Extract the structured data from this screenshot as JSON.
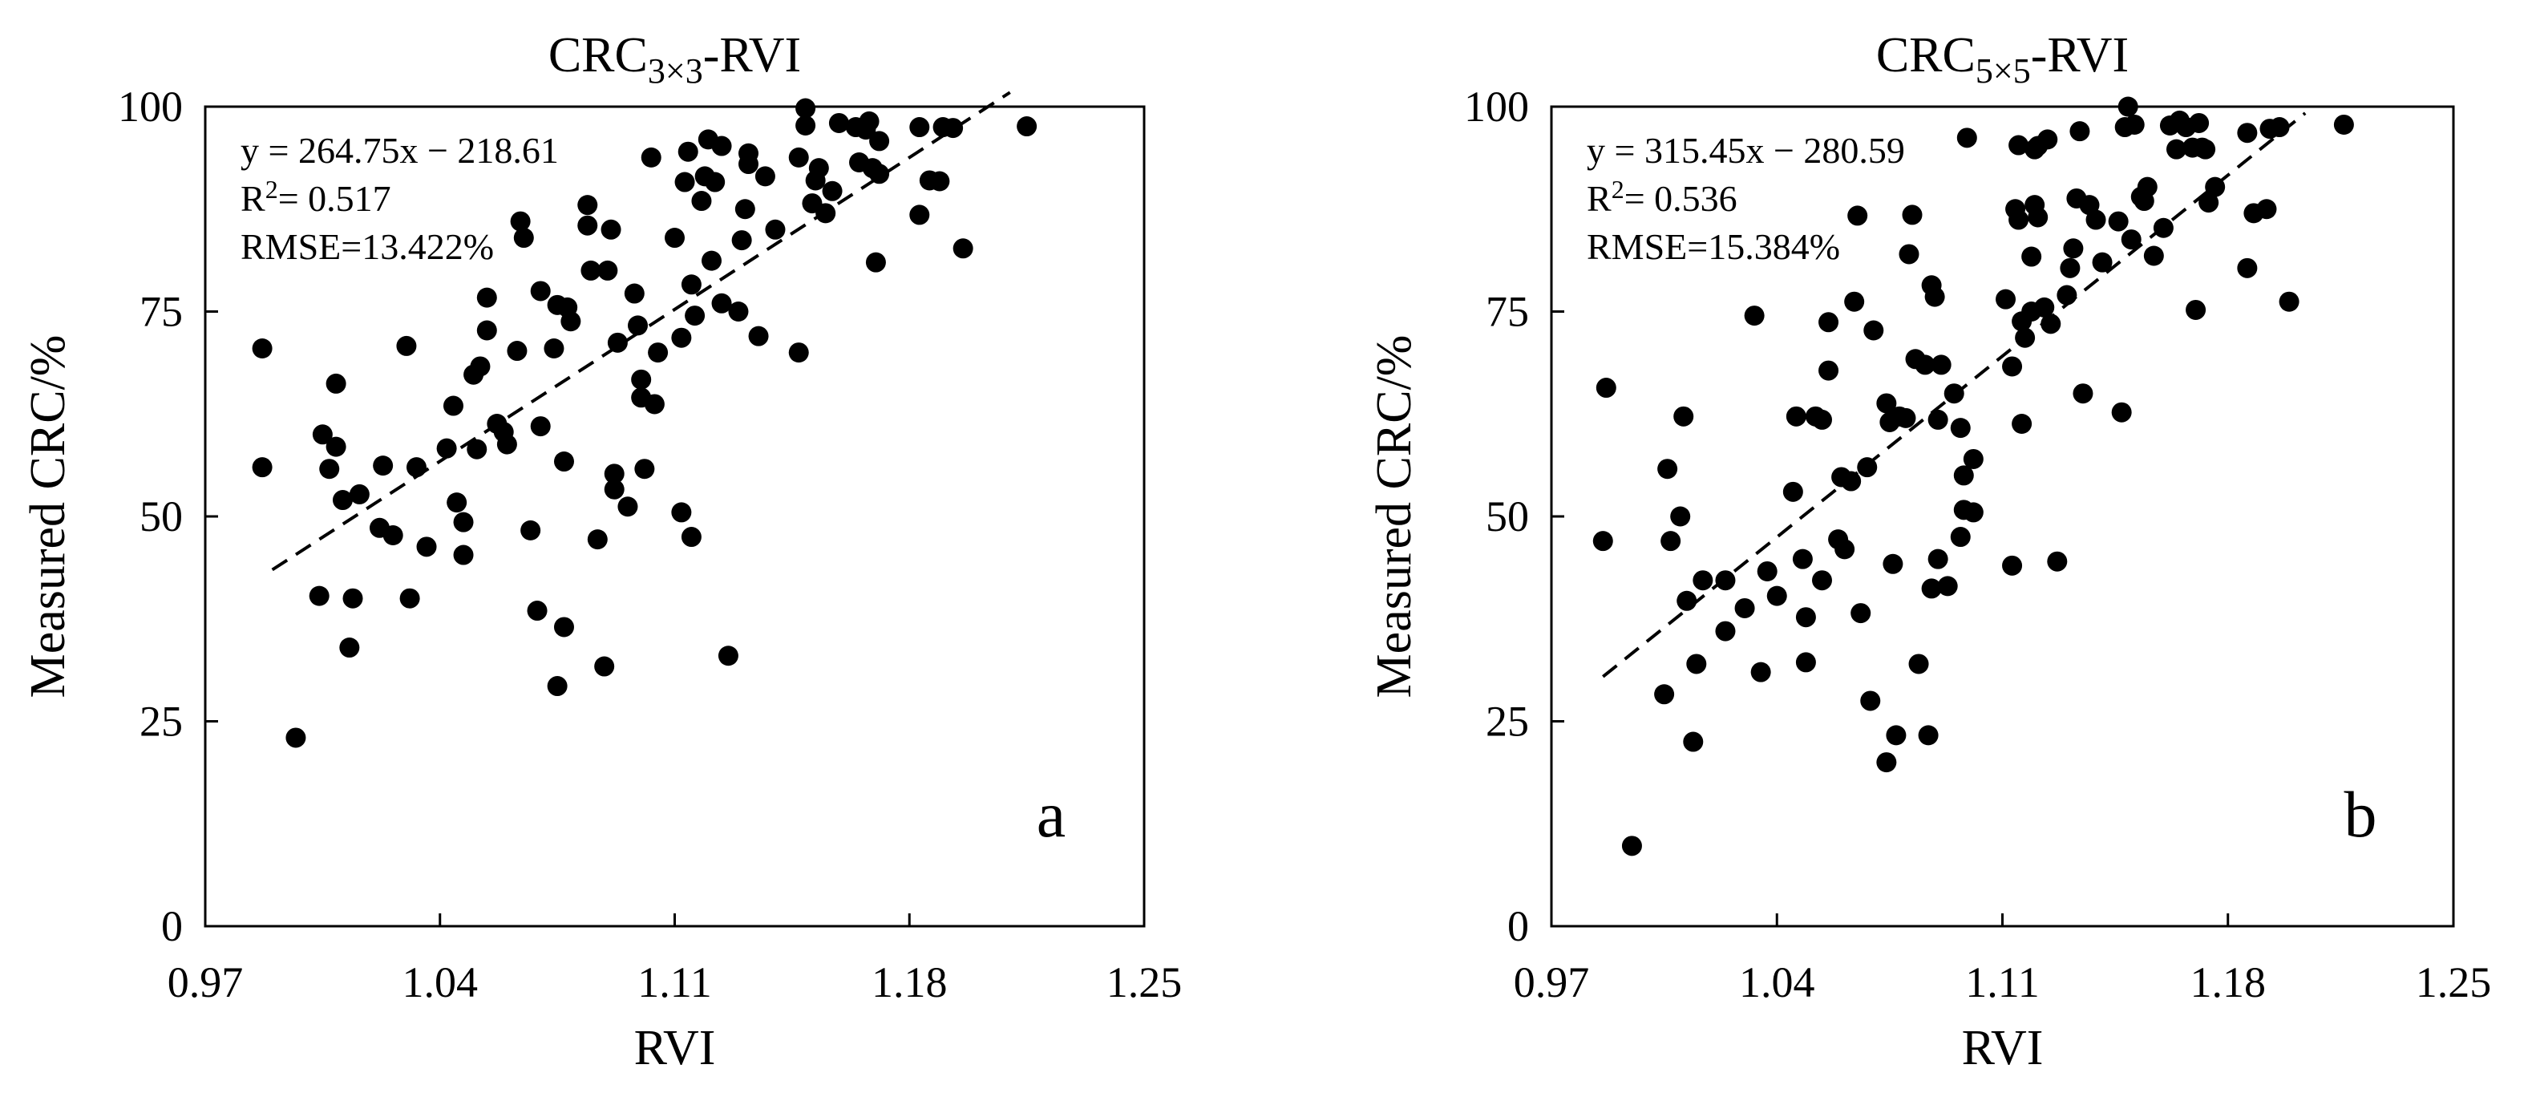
{
  "chart_data": [
    {
      "type": "scatter",
      "panel_label": "a",
      "title_main": "CRC",
      "title_subscript": "3×3",
      "title_suffix": "-RVI",
      "xlabel": "RVI",
      "ylabel": "Measured CRC/%",
      "xlim": [
        0.97,
        1.25
      ],
      "ylim": [
        0,
        100
      ],
      "xticks": [
        "0.97",
        "1.04",
        "1.11",
        "1.18",
        "1.25"
      ],
      "yticks": [
        "0",
        "25",
        "50",
        "75",
        "100"
      ],
      "regression": {
        "slope": 264.75,
        "intercept": -218.61,
        "x_range": [
          0.99,
          1.21
        ]
      },
      "equation_text": "y  = 264.75x − 218.61",
      "r2_label": "R",
      "r2_sup": "2",
      "r2_value": "= 0.517",
      "rmse_text": "RMSE=13.422%",
      "points": [
        [
          0.987,
          70.5
        ],
        [
          0.987,
          56.0
        ],
        [
          0.997,
          23.0
        ],
        [
          1.004,
          40.3
        ],
        [
          1.005,
          60.0
        ],
        [
          1.007,
          55.8
        ],
        [
          1.009,
          58.5
        ],
        [
          1.009,
          66.2
        ],
        [
          1.011,
          52.0
        ],
        [
          1.013,
          34.0
        ],
        [
          1.014,
          40.0
        ],
        [
          1.016,
          52.7
        ],
        [
          1.022,
          48.6
        ],
        [
          1.023,
          56.2
        ],
        [
          1.026,
          47.7
        ],
        [
          1.03,
          70.8
        ],
        [
          1.031,
          40.0
        ],
        [
          1.033,
          56.0
        ],
        [
          1.036,
          46.3
        ],
        [
          1.042,
          58.3
        ],
        [
          1.044,
          63.5
        ],
        [
          1.045,
          51.7
        ],
        [
          1.047,
          45.3
        ],
        [
          1.047,
          49.3
        ],
        [
          1.05,
          67.3
        ],
        [
          1.051,
          58.2
        ],
        [
          1.052,
          68.3
        ],
        [
          1.054,
          76.7
        ],
        [
          1.054,
          72.7
        ],
        [
          1.057,
          61.3
        ],
        [
          1.059,
          60.3
        ],
        [
          1.06,
          58.8
        ],
        [
          1.063,
          70.2
        ],
        [
          1.064,
          86.0
        ],
        [
          1.065,
          84.0
        ],
        [
          1.067,
          48.3
        ],
        [
          1.069,
          38.5
        ],
        [
          1.07,
          61.0
        ],
        [
          1.07,
          77.5
        ],
        [
          1.074,
          70.5
        ],
        [
          1.075,
          75.8
        ],
        [
          1.075,
          29.3
        ],
        [
          1.077,
          36.5
        ],
        [
          1.077,
          56.7
        ],
        [
          1.078,
          75.5
        ],
        [
          1.079,
          73.8
        ],
        [
          1.084,
          88.0
        ],
        [
          1.084,
          85.5
        ],
        [
          1.085,
          80.0
        ],
        [
          1.087,
          47.2
        ],
        [
          1.089,
          31.7
        ],
        [
          1.09,
          80.0
        ],
        [
          1.091,
          85.0
        ],
        [
          1.092,
          55.2
        ],
        [
          1.092,
          53.3
        ],
        [
          1.093,
          71.2
        ],
        [
          1.096,
          51.2
        ],
        [
          1.098,
          77.2
        ],
        [
          1.099,
          73.3
        ],
        [
          1.1,
          66.7
        ],
        [
          1.1,
          64.5
        ],
        [
          1.101,
          55.8
        ],
        [
          1.103,
          93.8
        ],
        [
          1.104,
          63.7
        ],
        [
          1.105,
          70.0
        ],
        [
          1.11,
          84.0
        ],
        [
          1.112,
          71.8
        ],
        [
          1.112,
          50.5
        ],
        [
          1.113,
          90.8
        ],
        [
          1.114,
          94.5
        ],
        [
          1.115,
          78.3
        ],
        [
          1.115,
          47.5
        ],
        [
          1.116,
          74.5
        ],
        [
          1.118,
          88.5
        ],
        [
          1.119,
          91.5
        ],
        [
          1.12,
          96.0
        ],
        [
          1.121,
          81.2
        ],
        [
          1.122,
          90.8
        ],
        [
          1.124,
          76.0
        ],
        [
          1.124,
          95.2
        ],
        [
          1.126,
          33.0
        ],
        [
          1.129,
          75.0
        ],
        [
          1.13,
          83.7
        ],
        [
          1.131,
          87.5
        ],
        [
          1.132,
          93.0
        ],
        [
          1.132,
          94.3
        ],
        [
          1.135,
          72.0
        ],
        [
          1.137,
          91.5
        ],
        [
          1.14,
          85.0
        ],
        [
          1.147,
          93.8
        ],
        [
          1.147,
          70.0
        ],
        [
          1.149,
          97.7
        ],
        [
          1.149,
          99.8
        ],
        [
          1.151,
          88.2
        ],
        [
          1.152,
          91.0
        ],
        [
          1.153,
          92.5
        ],
        [
          1.155,
          87.0
        ],
        [
          1.157,
          89.7
        ],
        [
          1.159,
          98.0
        ],
        [
          1.164,
          97.5
        ],
        [
          1.165,
          93.2
        ],
        [
          1.167,
          97.2
        ],
        [
          1.168,
          98.2
        ],
        [
          1.169,
          92.5
        ],
        [
          1.17,
          81.0
        ],
        [
          1.171,
          91.8
        ],
        [
          1.171,
          95.8
        ],
        [
          1.183,
          97.5
        ],
        [
          1.183,
          86.8
        ],
        [
          1.186,
          91.0
        ],
        [
          1.189,
          90.9
        ],
        [
          1.19,
          97.5
        ],
        [
          1.193,
          97.4
        ],
        [
          1.196,
          82.7
        ],
        [
          1.215,
          97.6
        ]
      ]
    },
    {
      "type": "scatter",
      "panel_label": "b",
      "title_main": "CRC",
      "title_subscript": "5×5",
      "title_suffix": "-RVI",
      "xlabel": "RVI",
      "ylabel": "Measured CRC/%",
      "xlim": [
        0.97,
        1.25
      ],
      "ylim": [
        0,
        100
      ],
      "xticks": [
        "0.97",
        "1.04",
        "1.11",
        "1.18",
        "1.25"
      ],
      "yticks": [
        "0",
        "25",
        "50",
        "75",
        "100"
      ],
      "regression": {
        "slope": 315.45,
        "intercept": -280.59,
        "x_range": [
          0.986,
          1.204
        ]
      },
      "equation_text": "y  = 315.45x − 280.59",
      "r2_label": "R",
      "r2_sup": "2",
      "r2_value": "= 0.536",
      "rmse_text": "RMSE=15.384%",
      "points": [
        [
          0.986,
          47.0
        ],
        [
          0.987,
          65.7
        ],
        [
          0.995,
          9.8
        ],
        [
          1.005,
          28.3
        ],
        [
          1.006,
          55.8
        ],
        [
          1.007,
          47.0
        ],
        [
          1.01,
          50.0
        ],
        [
          1.011,
          62.2
        ],
        [
          1.012,
          39.7
        ],
        [
          1.014,
          22.5
        ],
        [
          1.015,
          32.0
        ],
        [
          1.017,
          42.2
        ],
        [
          1.024,
          42.2
        ],
        [
          1.024,
          36.0
        ],
        [
          1.03,
          38.8
        ],
        [
          1.033,
          74.5
        ],
        [
          1.035,
          31.0
        ],
        [
          1.037,
          43.3
        ],
        [
          1.04,
          40.3
        ],
        [
          1.045,
          53.0
        ],
        [
          1.046,
          62.2
        ],
        [
          1.048,
          44.8
        ],
        [
          1.049,
          37.7
        ],
        [
          1.049,
          32.2
        ],
        [
          1.052,
          62.2
        ],
        [
          1.054,
          42.2
        ],
        [
          1.054,
          61.8
        ],
        [
          1.056,
          73.7
        ],
        [
          1.056,
          67.8
        ],
        [
          1.059,
          47.2
        ],
        [
          1.06,
          54.8
        ],
        [
          1.061,
          46.0
        ],
        [
          1.063,
          54.3
        ],
        [
          1.064,
          76.2
        ],
        [
          1.065,
          86.7
        ],
        [
          1.066,
          38.2
        ],
        [
          1.068,
          56.0
        ],
        [
          1.069,
          27.5
        ],
        [
          1.07,
          72.7
        ],
        [
          1.074,
          20.0
        ],
        [
          1.074,
          63.8
        ],
        [
          1.075,
          61.5
        ],
        [
          1.076,
          44.2
        ],
        [
          1.077,
          23.3
        ],
        [
          1.078,
          62.2
        ],
        [
          1.08,
          62.0
        ],
        [
          1.081,
          82.0
        ],
        [
          1.082,
          86.8
        ],
        [
          1.083,
          69.2
        ],
        [
          1.084,
          32.0
        ],
        [
          1.086,
          68.5
        ],
        [
          1.087,
          23.3
        ],
        [
          1.088,
          41.2
        ],
        [
          1.088,
          78.2
        ],
        [
          1.089,
          76.8
        ],
        [
          1.09,
          44.8
        ],
        [
          1.09,
          61.8
        ],
        [
          1.091,
          68.5
        ],
        [
          1.093,
          41.5
        ],
        [
          1.095,
          65.0
        ],
        [
          1.097,
          60.8
        ],
        [
          1.097,
          47.5
        ],
        [
          1.098,
          50.8
        ],
        [
          1.098,
          55.0
        ],
        [
          1.099,
          96.2
        ],
        [
          1.101,
          57.0
        ],
        [
          1.101,
          50.5
        ],
        [
          1.111,
          76.5
        ],
        [
          1.113,
          68.3
        ],
        [
          1.113,
          44.0
        ],
        [
          1.114,
          87.5
        ],
        [
          1.115,
          86.2
        ],
        [
          1.115,
          95.3
        ],
        [
          1.116,
          73.8
        ],
        [
          1.116,
          61.3
        ],
        [
          1.117,
          71.8
        ],
        [
          1.119,
          81.7
        ],
        [
          1.119,
          75.0
        ],
        [
          1.12,
          94.8
        ],
        [
          1.12,
          88.0
        ],
        [
          1.121,
          86.5
        ],
        [
          1.121,
          95.2
        ],
        [
          1.123,
          75.5
        ],
        [
          1.124,
          96.0
        ],
        [
          1.125,
          73.5
        ],
        [
          1.127,
          44.5
        ],
        [
          1.13,
          77.0
        ],
        [
          1.131,
          80.3
        ],
        [
          1.132,
          82.7
        ],
        [
          1.133,
          88.8
        ],
        [
          1.134,
          97.0
        ],
        [
          1.135,
          65.0
        ],
        [
          1.137,
          88.0
        ],
        [
          1.139,
          86.2
        ],
        [
          1.141,
          81.0
        ],
        [
          1.146,
          86.0
        ],
        [
          1.147,
          62.7
        ],
        [
          1.148,
          97.5
        ],
        [
          1.149,
          100.0
        ],
        [
          1.15,
          83.8
        ],
        [
          1.151,
          97.8
        ],
        [
          1.153,
          89.0
        ],
        [
          1.154,
          88.5
        ],
        [
          1.155,
          90.2
        ],
        [
          1.157,
          81.8
        ],
        [
          1.16,
          85.2
        ],
        [
          1.162,
          97.7
        ],
        [
          1.164,
          94.8
        ],
        [
          1.165,
          98.3
        ],
        [
          1.167,
          97.5
        ],
        [
          1.169,
          95.0
        ],
        [
          1.17,
          75.2
        ],
        [
          1.171,
          98.0
        ],
        [
          1.172,
          95.0
        ],
        [
          1.173,
          94.8
        ],
        [
          1.174,
          88.3
        ],
        [
          1.176,
          90.2
        ],
        [
          1.186,
          96.8
        ],
        [
          1.186,
          80.3
        ],
        [
          1.188,
          87.0
        ],
        [
          1.192,
          87.5
        ],
        [
          1.193,
          97.3
        ],
        [
          1.196,
          97.5
        ],
        [
          1.199,
          76.2
        ],
        [
          1.216,
          97.8
        ]
      ]
    }
  ]
}
